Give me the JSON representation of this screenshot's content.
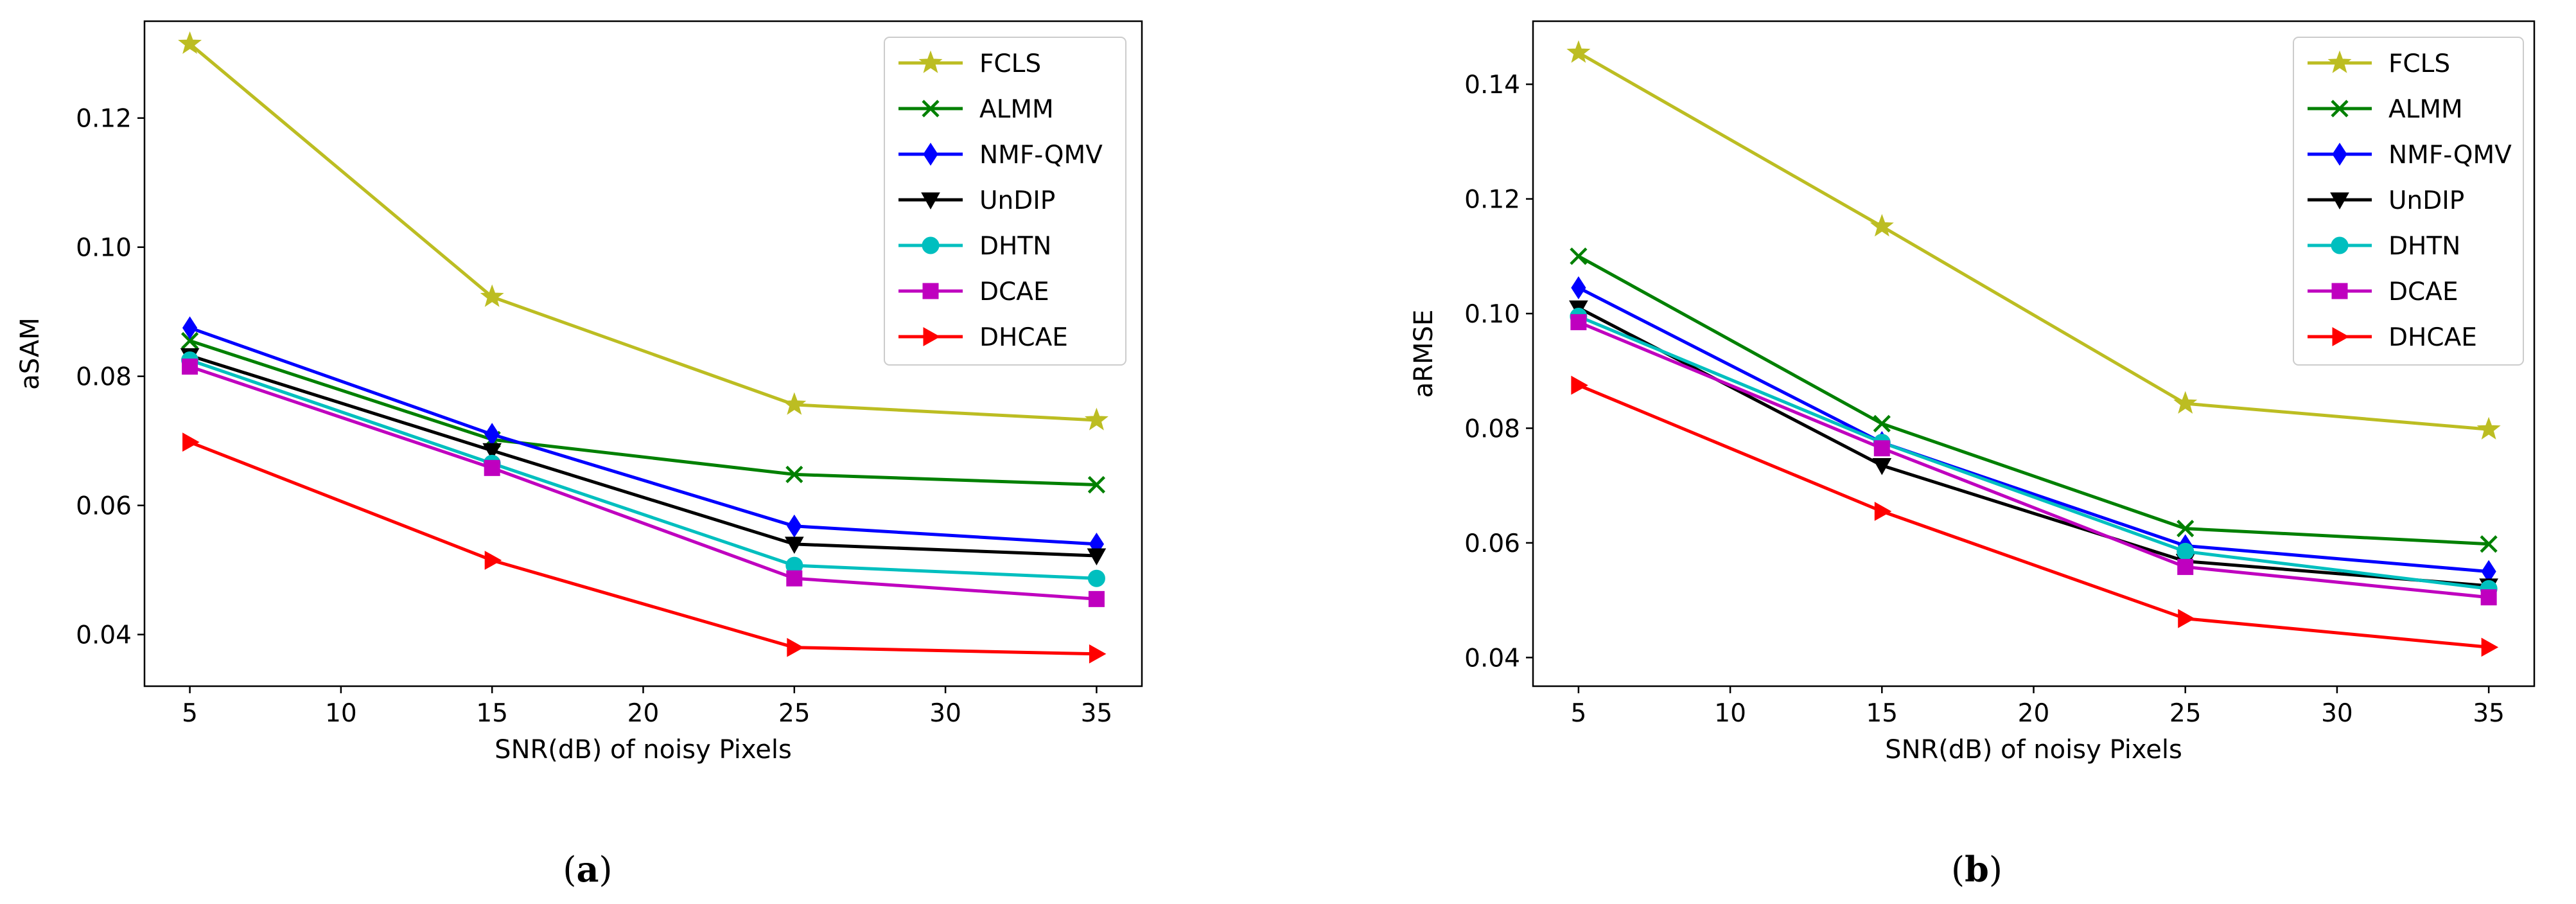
{
  "chart_data": [
    {
      "type": "line",
      "panel_label": "(a)",
      "xlabel": "SNR(dB) of noisy Pixels",
      "ylabel": "aSAM",
      "x": [
        5,
        15,
        25,
        35
      ],
      "xlim": [
        3.5,
        36.5
      ],
      "ylim": [
        0.032,
        0.135
      ],
      "xticks": [
        5,
        10,
        15,
        20,
        25,
        30,
        35
      ],
      "yticks": [
        0.04,
        0.06,
        0.08,
        0.1,
        0.12
      ],
      "ytick_labels": [
        "0.04",
        "0.06",
        "0.08",
        "0.10",
        "0.12"
      ],
      "grid": false,
      "legend_position": "top-right",
      "series": [
        {
          "name": "FCLS",
          "color": "#bcbd22",
          "marker": "star",
          "values": [
            0.1315,
            0.0923,
            0.0756,
            0.0732
          ]
        },
        {
          "name": "ALMM",
          "color": "#008000",
          "marker": "x",
          "values": [
            0.0855,
            0.0702,
            0.0648,
            0.0632
          ]
        },
        {
          "name": "NMF-QMV",
          "color": "#0000ff",
          "marker": "diamond",
          "values": [
            0.0875,
            0.071,
            0.0568,
            0.054
          ]
        },
        {
          "name": "UnDIP",
          "color": "#000000",
          "marker": "triangle-down",
          "values": [
            0.0832,
            0.0685,
            0.054,
            0.0522
          ]
        },
        {
          "name": "DHTN",
          "color": "#00bfbf",
          "marker": "circle",
          "values": [
            0.0825,
            0.0665,
            0.0507,
            0.0487
          ]
        },
        {
          "name": "DCAE",
          "color": "#bf00bf",
          "marker": "square",
          "values": [
            0.0815,
            0.0658,
            0.0487,
            0.0455
          ]
        },
        {
          "name": "DHCAE",
          "color": "#ff0000",
          "marker": "triangle-right",
          "values": [
            0.0698,
            0.0515,
            0.038,
            0.037
          ]
        }
      ]
    },
    {
      "type": "line",
      "panel_label": "(b)",
      "xlabel": "SNR(dB) of noisy Pixels",
      "ylabel": "aRMSE",
      "x": [
        5,
        15,
        25,
        35
      ],
      "xlim": [
        3.5,
        36.5
      ],
      "ylim": [
        0.035,
        0.151
      ],
      "xticks": [
        5,
        10,
        15,
        20,
        25,
        30,
        35
      ],
      "yticks": [
        0.04,
        0.06,
        0.08,
        0.1,
        0.12,
        0.14
      ],
      "ytick_labels": [
        "0.04",
        "0.06",
        "0.08",
        "0.10",
        "0.12",
        "0.14"
      ],
      "grid": false,
      "legend_position": "top-right",
      "series": [
        {
          "name": "FCLS",
          "color": "#bcbd22",
          "marker": "star",
          "values": [
            0.1455,
            0.1152,
            0.0843,
            0.0798
          ]
        },
        {
          "name": "ALMM",
          "color": "#008000",
          "marker": "x",
          "values": [
            0.11,
            0.0808,
            0.0625,
            0.0598
          ]
        },
        {
          "name": "NMF-QMV",
          "color": "#0000ff",
          "marker": "diamond",
          "values": [
            0.1045,
            0.0775,
            0.0595,
            0.055
          ]
        },
        {
          "name": "UnDIP",
          "color": "#000000",
          "marker": "triangle-down",
          "values": [
            0.101,
            0.0735,
            0.0568,
            0.0525
          ]
        },
        {
          "name": "DHTN",
          "color": "#00bfbf",
          "marker": "circle",
          "values": [
            0.0995,
            0.0775,
            0.0585,
            0.052
          ]
        },
        {
          "name": "DCAE",
          "color": "#bf00bf",
          "marker": "square",
          "values": [
            0.0985,
            0.0765,
            0.0558,
            0.0505
          ]
        },
        {
          "name": "DHCAE",
          "color": "#ff0000",
          "marker": "triangle-right",
          "values": [
            0.0875,
            0.0655,
            0.0468,
            0.0418
          ]
        }
      ]
    }
  ]
}
